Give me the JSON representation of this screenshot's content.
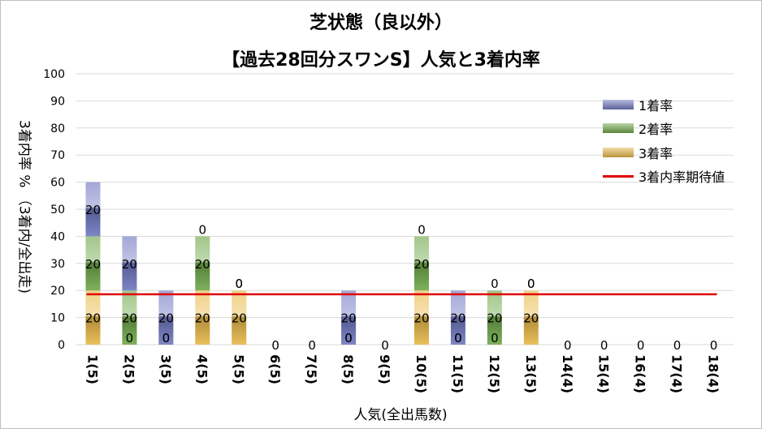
{
  "chart_data": {
    "type": "bar",
    "stacked": true,
    "title": "芝状態（良以外）",
    "subtitle": "【過去28回分スワンS】人気と3着内率",
    "xlabel": "人気(全出馬数)",
    "ylabel": "3着内率 %  （3着内/全出走)",
    "ylim": [
      0,
      100
    ],
    "yticks": [
      0,
      10,
      20,
      30,
      40,
      50,
      60,
      70,
      80,
      90,
      100
    ],
    "grid": true,
    "legend_position": "right",
    "categories": [
      "1(5)",
      "2(5)",
      "3(5)",
      "4(5)",
      "5(5)",
      "6(5)",
      "7(5)",
      "8(5)",
      "9(5)",
      "10(5)",
      "11(5)",
      "12(5)",
      "13(5)",
      "14(4)",
      "15(4)",
      "16(4)",
      "17(4)",
      "18(4)"
    ],
    "series": [
      {
        "name": "3着率",
        "values": [
          20,
          0,
          0,
          20,
          20,
          0,
          0,
          0,
          0,
          20,
          0,
          0,
          20,
          0,
          0,
          0,
          0,
          0
        ],
        "color": "#e8b94a"
      },
      {
        "name": "2着率",
        "values": [
          20,
          20,
          0,
          20,
          0,
          0,
          0,
          0,
          0,
          20,
          0,
          20,
          0,
          0,
          0,
          0,
          0,
          0
        ],
        "color": "#70a84a"
      },
      {
        "name": "1着率",
        "values": [
          20,
          20,
          20,
          0,
          0,
          0,
          0,
          20,
          0,
          0,
          20,
          0,
          0,
          0,
          0,
          0,
          0,
          0
        ],
        "color": "#7078c0"
      }
    ],
    "expected_line": {
      "name": "3着内率期待値",
      "value": 18.6,
      "color": "#e00000"
    }
  }
}
